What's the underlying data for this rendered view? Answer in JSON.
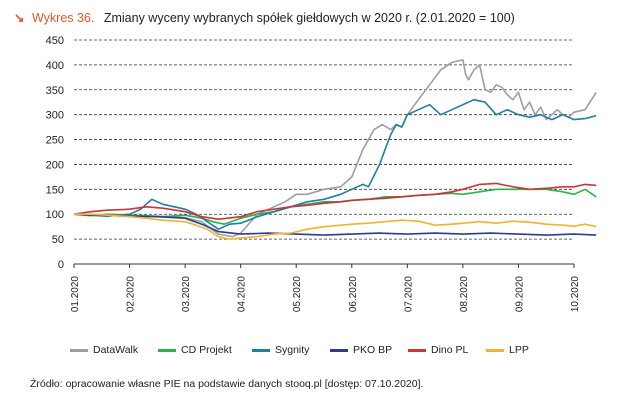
{
  "title": {
    "arrow": "↘",
    "number": "Wykres 36.",
    "text": "Zmiany wyceny wybranych spółek giełdowych w 2020 r. (2.01.2020 = 100)"
  },
  "source": "Źródło: opracowanie własne PIE na podstawie danych stooq.pl [dostęp: 07.10.2020].",
  "chart_data": {
    "type": "line",
    "ylim": [
      0,
      450
    ],
    "yticks": [
      0,
      50,
      100,
      150,
      200,
      250,
      300,
      350,
      400,
      450
    ],
    "xticks": [
      "01.2020",
      "02.2020",
      "03.2020",
      "04.2020",
      "05.2020",
      "06.2020",
      "07.2020",
      "08.2020",
      "09.2020",
      "10.2020"
    ],
    "grid": "horizontal dashed",
    "legend": "bottom",
    "series": [
      {
        "name": "DataWalk",
        "color": "#9e9e9e",
        "x": [
          0.0,
          0.3,
          0.6,
          1.0,
          1.4,
          1.7,
          2.0,
          2.3,
          2.6,
          2.85,
          3.0,
          3.3,
          3.6,
          3.8,
          4.0,
          4.2,
          4.5,
          4.8,
          5.0,
          5.2,
          5.4,
          5.55,
          5.7,
          5.8,
          5.9,
          6.0,
          6.2,
          6.4,
          6.6,
          6.8,
          7.0,
          7.05,
          7.1,
          7.2,
          7.3,
          7.4,
          7.5,
          7.6,
          7.7,
          7.8,
          7.9,
          8.0,
          8.1,
          8.2,
          8.3,
          8.4,
          8.5,
          8.6,
          8.7,
          8.8,
          8.9,
          9.0,
          9.2,
          9.4
        ],
        "values": [
          100,
          98,
          97,
          97,
          96,
          95,
          93,
          85,
          60,
          55,
          62,
          100,
          115,
          125,
          140,
          140,
          150,
          155,
          175,
          230,
          270,
          280,
          270,
          280,
          275,
          300,
          330,
          360,
          390,
          405,
          410,
          380,
          370,
          390,
          400,
          350,
          345,
          360,
          355,
          340,
          330,
          345,
          310,
          325,
          300,
          315,
          290,
          300,
          310,
          300,
          295,
          305,
          310,
          345
        ]
      },
      {
        "name": "CD Projekt",
        "color": "#2bb24c",
        "x": [
          0.0,
          0.3,
          0.6,
          1.0,
          1.3,
          1.6,
          2.0,
          2.3,
          2.5,
          2.7,
          3.0,
          3.3,
          3.6,
          3.9,
          4.2,
          4.5,
          4.8,
          5.0,
          5.3,
          5.6,
          5.9,
          6.2,
          6.5,
          6.8,
          7.0,
          7.3,
          7.6,
          7.9,
          8.2,
          8.5,
          8.8,
          9.0,
          9.2,
          9.4
        ],
        "values": [
          100,
          97,
          100,
          98,
          97,
          95,
          98,
          92,
          85,
          80,
          92,
          100,
          105,
          115,
          120,
          125,
          125,
          128,
          130,
          135,
          135,
          138,
          140,
          142,
          140,
          145,
          150,
          150,
          150,
          150,
          145,
          140,
          150,
          135
        ]
      },
      {
        "name": "Sygnity",
        "color": "#1f7ea1",
        "x": [
          0.0,
          0.3,
          0.6,
          1.0,
          1.2,
          1.4,
          1.6,
          2.0,
          2.2,
          2.4,
          2.6,
          2.8,
          3.0,
          3.3,
          3.6,
          3.9,
          4.2,
          4.5,
          4.8,
          5.0,
          5.2,
          5.3,
          5.5,
          5.6,
          5.7,
          5.8,
          5.9,
          6.0,
          6.2,
          6.4,
          6.6,
          6.8,
          7.0,
          7.2,
          7.4,
          7.6,
          7.8,
          8.0,
          8.2,
          8.4,
          8.6,
          8.8,
          9.0,
          9.2,
          9.4
        ],
        "values": [
          100,
          98,
          96,
          100,
          110,
          130,
          120,
          110,
          100,
          85,
          70,
          80,
          82,
          95,
          105,
          115,
          125,
          130,
          140,
          150,
          160,
          155,
          200,
          230,
          260,
          280,
          275,
          300,
          310,
          320,
          300,
          310,
          320,
          330,
          325,
          300,
          310,
          300,
          295,
          300,
          290,
          300,
          290,
          292,
          298
        ]
      },
      {
        "name": "PKO BP",
        "color": "#2c3b8f",
        "x": [
          0.0,
          0.5,
          1.0,
          1.5,
          2.0,
          2.3,
          2.6,
          3.0,
          3.5,
          4.0,
          4.5,
          5.0,
          5.5,
          6.0,
          6.5,
          7.0,
          7.5,
          8.0,
          8.5,
          9.0,
          9.4
        ],
        "values": [
          100,
          98,
          96,
          95,
          92,
          80,
          65,
          60,
          62,
          60,
          58,
          60,
          62,
          60,
          62,
          60,
          62,
          60,
          58,
          60,
          58
        ]
      },
      {
        "name": "Dino PL",
        "color": "#c9353b",
        "x": [
          0.0,
          0.3,
          0.6,
          1.0,
          1.3,
          1.6,
          2.0,
          2.3,
          2.6,
          3.0,
          3.3,
          3.6,
          3.9,
          4.2,
          4.5,
          4.8,
          5.0,
          5.3,
          5.6,
          5.9,
          6.2,
          6.5,
          6.8,
          7.0,
          7.3,
          7.6,
          7.9,
          8.2,
          8.5,
          8.8,
          9.0,
          9.2,
          9.4
        ],
        "values": [
          100,
          105,
          108,
          110,
          115,
          112,
          105,
          95,
          90,
          95,
          105,
          110,
          115,
          118,
          122,
          125,
          128,
          130,
          132,
          135,
          138,
          140,
          145,
          150,
          160,
          162,
          155,
          150,
          152,
          155,
          155,
          160,
          158
        ]
      },
      {
        "name": "LPP",
        "color": "#f2b233",
        "x": [
          0.0,
          0.3,
          0.6,
          1.0,
          1.3,
          1.6,
          2.0,
          2.2,
          2.4,
          2.6,
          2.8,
          3.0,
          3.3,
          3.6,
          3.9,
          4.2,
          4.5,
          4.8,
          5.0,
          5.3,
          5.6,
          5.9,
          6.2,
          6.5,
          6.8,
          7.0,
          7.3,
          7.6,
          7.9,
          8.2,
          8.5,
          8.8,
          9.0,
          9.2,
          9.4
        ],
        "values": [
          100,
          100,
          98,
          95,
          92,
          88,
          85,
          78,
          70,
          55,
          50,
          52,
          55,
          60,
          62,
          70,
          75,
          78,
          80,
          82,
          85,
          88,
          86,
          78,
          80,
          82,
          85,
          82,
          86,
          84,
          80,
          78,
          76,
          80,
          75
        ]
      }
    ]
  }
}
